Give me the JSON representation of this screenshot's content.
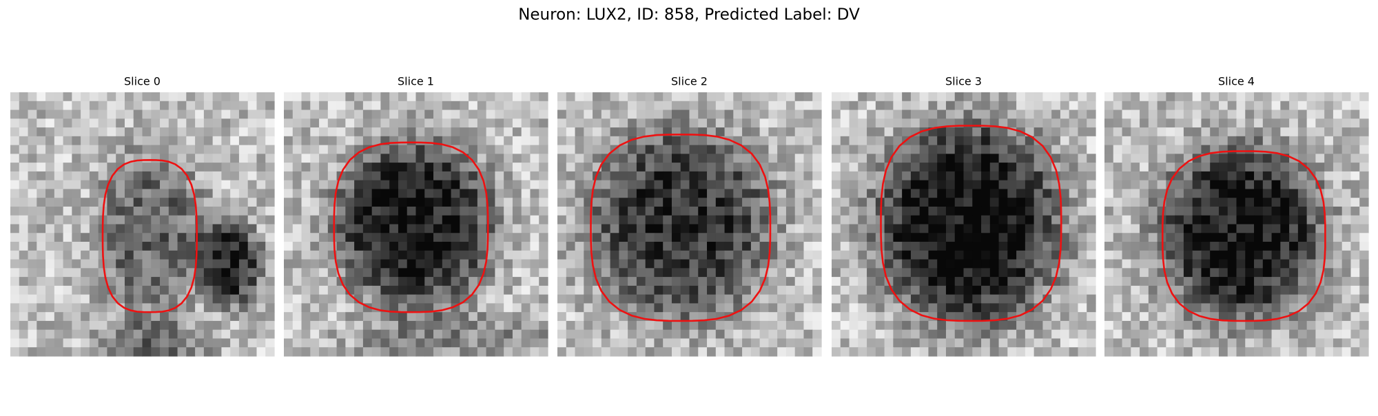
{
  "header": {
    "title": "Neuron: LUX2, ID: 858, Predicted Label: DV"
  },
  "panels": [
    {
      "title": "Slice 0"
    },
    {
      "title": "Slice 1"
    },
    {
      "title": "Slice 2"
    },
    {
      "title": "Slice 3"
    },
    {
      "title": "Slice 4"
    }
  ]
}
